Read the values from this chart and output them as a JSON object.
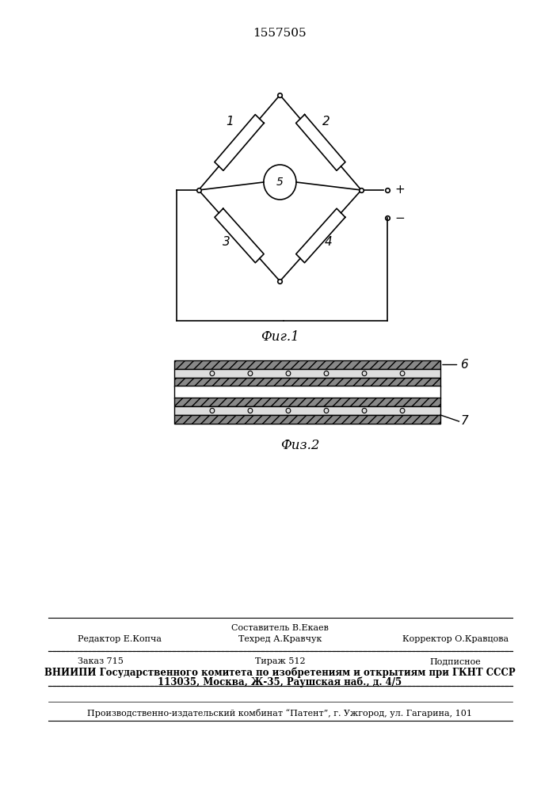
{
  "patent_number": "1557505",
  "fig1_label": "Фиг.1",
  "fig2_label": "Физ.2",
  "background": "#ffffff",
  "line_color": "#000000",
  "footer_line1_left": "Редактор Е.Копча",
  "footer_line1_center": "Техред А.Кравчук",
  "footer_line1_right": "Корректор О.Кравцова",
  "footer_line0_center": "Составитель В.Екаев",
  "footer_order": "Заказ 715",
  "footer_tirage": "Тираж 512",
  "footer_podpisnoe": "Подписное",
  "footer_vnipi": "ВНИИПИ Государственного комитета по изобретениям и открытиям при ГКНТ СССР",
  "footer_address": "113035, Москва, Ж-35, Раушская наб., д. 4/5",
  "footer_patent": "Производственно-издательский комбинат “Патент”, г. Ужгород, ул. Гагарина, 101"
}
